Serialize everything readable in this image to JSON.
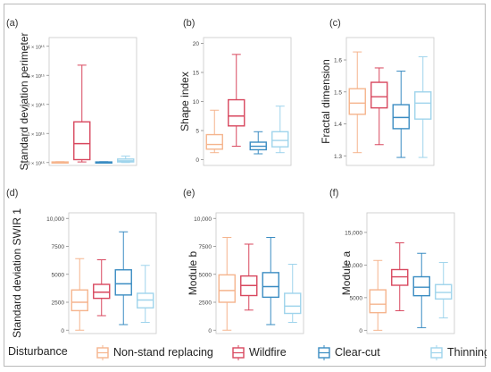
{
  "colors": {
    "non_stand_replacing": "#f5b48d",
    "wildfire": "#d8475e",
    "clear_cut": "#3a8cc2",
    "thinning": "#9fd4ec",
    "axis": "#8c8c8c",
    "text": "#333333"
  },
  "legend": {
    "title": "Disturbance",
    "entries": [
      "Non-stand replacing",
      "Wildfire",
      "Clear-cut",
      "Thinning"
    ]
  },
  "chart_data": [
    {
      "panel_label": "(a)",
      "type": "box",
      "ylabel": "Standard deviation perimeter",
      "ylim": [
        -100000000000000.0,
        4300000000000000.0
      ],
      "yticks": [
        0,
        1000000000000000.0,
        2000000000000000.0,
        3000000000000000.0,
        4000000000000000.0
      ],
      "ytick_labels": [
        "0 × 10¹⁵",
        "1 × 10¹⁵",
        "2 × 10¹⁵",
        "3 × 10¹⁵",
        "4 × 10¹⁵"
      ],
      "series": [
        {
          "whisker_low": 0.0,
          "q1": 0.0,
          "median": 10000000000000.0,
          "q3": 20000000000000.0,
          "whisker_high": 30000000000000.0
        },
        {
          "whisker_low": 20000000000000.0,
          "q1": 100000000000000.0,
          "median": 650000000000000.0,
          "q3": 1400000000000000.0,
          "whisker_high": 3350000000000000.0
        },
        {
          "whisker_low": 0.0,
          "q1": 0.0,
          "median": 10000000000000.0,
          "q3": 20000000000000.0,
          "whisker_high": 30000000000000.0
        },
        {
          "whisker_low": 0.0,
          "q1": 20000000000000.0,
          "median": 60000000000000.0,
          "q3": 120000000000000.0,
          "whisker_high": 220000000000000.0
        }
      ]
    },
    {
      "panel_label": "(b)",
      "type": "box",
      "ylabel": "Shape index",
      "ylim": [
        -1,
        21
      ],
      "yticks": [
        0,
        5,
        10,
        15,
        20
      ],
      "ytick_labels": [
        "0",
        "5",
        "10",
        "15",
        "20"
      ],
      "series": [
        {
          "whisker_low": 1.2,
          "q1": 1.8,
          "median": 2.6,
          "q3": 4.3,
          "whisker_high": 8.5
        },
        {
          "whisker_low": 2.3,
          "q1": 5.8,
          "median": 7.5,
          "q3": 10.3,
          "whisker_high": 18.1
        },
        {
          "whisker_low": 1.0,
          "q1": 1.7,
          "median": 2.3,
          "q3": 3.0,
          "whisker_high": 4.8
        },
        {
          "whisker_low": 1.2,
          "q1": 2.2,
          "median": 3.3,
          "q3": 4.8,
          "whisker_high": 9.2
        }
      ]
    },
    {
      "panel_label": "(c)",
      "type": "box",
      "ylabel": "Fractal dimension",
      "ylim": [
        1.27,
        1.67
      ],
      "yticks": [
        1.3,
        1.4,
        1.5,
        1.6
      ],
      "ytick_labels": [
        "1.3",
        "1.4",
        "1.5",
        "1.6"
      ],
      "series": [
        {
          "whisker_low": 1.31,
          "q1": 1.43,
          "median": 1.465,
          "q3": 1.51,
          "whisker_high": 1.625
        },
        {
          "whisker_low": 1.335,
          "q1": 1.45,
          "median": 1.485,
          "q3": 1.53,
          "whisker_high": 1.575
        },
        {
          "whisker_low": 1.295,
          "q1": 1.385,
          "median": 1.42,
          "q3": 1.46,
          "whisker_high": 1.565
        },
        {
          "whisker_low": 1.295,
          "q1": 1.415,
          "median": 1.465,
          "q3": 1.5,
          "whisker_high": 1.61
        }
      ]
    },
    {
      "panel_label": "(d)",
      "type": "box",
      "ylabel": "Standard deviation SWIR 1",
      "ylim": [
        -300,
        10500
      ],
      "yticks": [
        0,
        2500,
        5000,
        7500,
        10000
      ],
      "ytick_labels": [
        "0",
        "2500",
        "5000",
        "7500",
        "10,000"
      ],
      "series": [
        {
          "whisker_low": 0,
          "q1": 1750,
          "median": 2500,
          "q3": 3600,
          "whisker_high": 6400
        },
        {
          "whisker_low": 1300,
          "q1": 2850,
          "median": 3400,
          "q3": 4100,
          "whisker_high": 6300
        },
        {
          "whisker_low": 500,
          "q1": 3150,
          "median": 4150,
          "q3": 5400,
          "whisker_high": 8800
        },
        {
          "whisker_low": 700,
          "q1": 2000,
          "median": 2700,
          "q3": 3300,
          "whisker_high": 5800
        }
      ]
    },
    {
      "panel_label": "(e)",
      "type": "box",
      "ylabel": "Module b",
      "ylim": [
        -300,
        10500
      ],
      "yticks": [
        0,
        2500,
        5000,
        7500,
        10000
      ],
      "ytick_labels": [
        "0",
        "2500",
        "5000",
        "7500",
        "10,000"
      ],
      "series": [
        {
          "whisker_low": 0,
          "q1": 2500,
          "median": 3550,
          "q3": 4950,
          "whisker_high": 8300
        },
        {
          "whisker_low": 1800,
          "q1": 3100,
          "median": 4000,
          "q3": 4850,
          "whisker_high": 7700
        },
        {
          "whisker_low": 500,
          "q1": 2950,
          "median": 3900,
          "q3": 5150,
          "whisker_high": 8300
        },
        {
          "whisker_low": 700,
          "q1": 1500,
          "median": 2150,
          "q3": 3300,
          "whisker_high": 5900
        }
      ]
    },
    {
      "panel_label": "(f)",
      "type": "box",
      "ylabel": "Module a",
      "ylim": [
        -500,
        18000
      ],
      "yticks": [
        0,
        5000,
        10000,
        15000
      ],
      "ytick_labels": [
        "0",
        "5000",
        "10,000",
        "15,000"
      ],
      "series": [
        {
          "whisker_low": 0,
          "q1": 2700,
          "median": 4000,
          "q3": 6200,
          "whisker_high": 10700
        },
        {
          "whisker_low": 3000,
          "q1": 6900,
          "median": 8200,
          "q3": 9300,
          "whisker_high": 13400
        },
        {
          "whisker_low": 400,
          "q1": 5300,
          "median": 6600,
          "q3": 8200,
          "whisker_high": 11800
        },
        {
          "whisker_low": 1900,
          "q1": 4800,
          "median": 5800,
          "q3": 7000,
          "whisker_high": 10400
        }
      ]
    }
  ]
}
